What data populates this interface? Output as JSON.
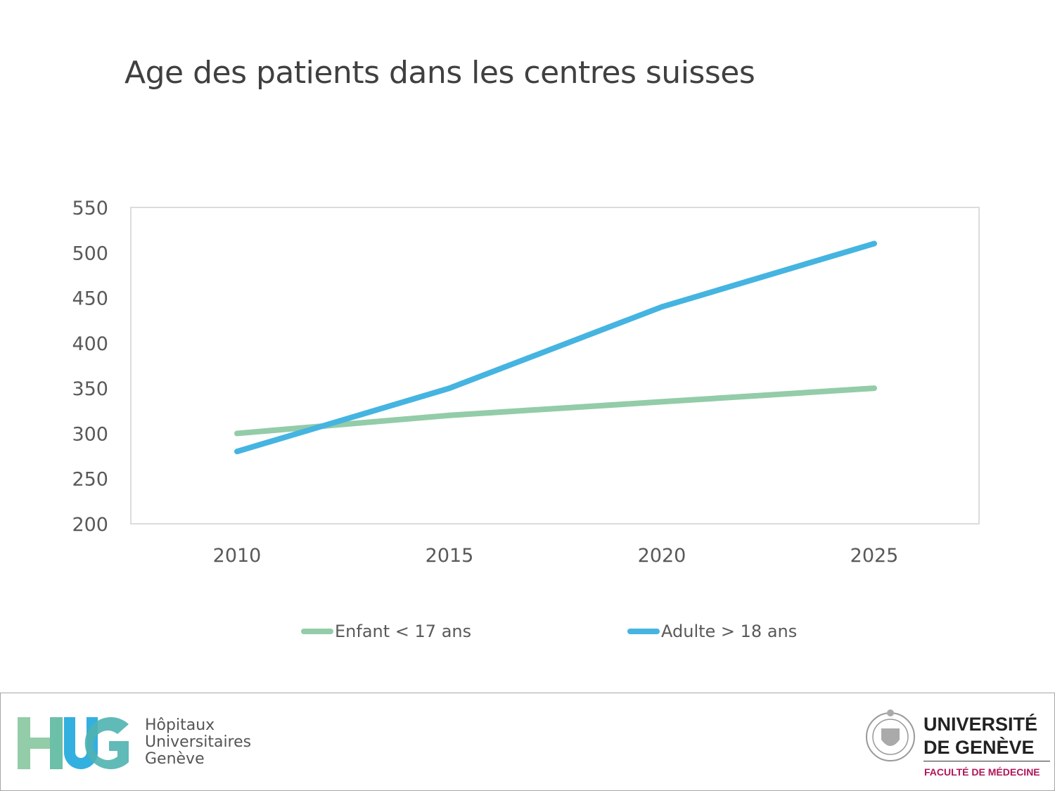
{
  "chart_data": {
    "type": "line",
    "title": "Age des patients dans les centres suisses",
    "categories": [
      "2010",
      "2015",
      "2020",
      "2025"
    ],
    "series": [
      {
        "name": "Enfant < 17 ans",
        "values": [
          300,
          320,
          335,
          350
        ],
        "color": "#93cca8"
      },
      {
        "name": "Adulte > 18 ans",
        "values": [
          280,
          350,
          440,
          510
        ],
        "color": "#45b4e1"
      }
    ],
    "ylim": [
      200,
      550
    ],
    "yticks": [
      200,
      250,
      300,
      350,
      400,
      450,
      500,
      550
    ],
    "grid": false,
    "legend": "bottom"
  },
  "footer": {
    "hug_logo": "HUG",
    "hug_name": [
      "Hôpitaux",
      "Universitaires",
      "Genève"
    ],
    "unige_name": [
      "UNIVERSITÉ",
      "DE GENÈVE"
    ],
    "unige_faculty": "FACULTÉ DE MÉDECINE"
  }
}
